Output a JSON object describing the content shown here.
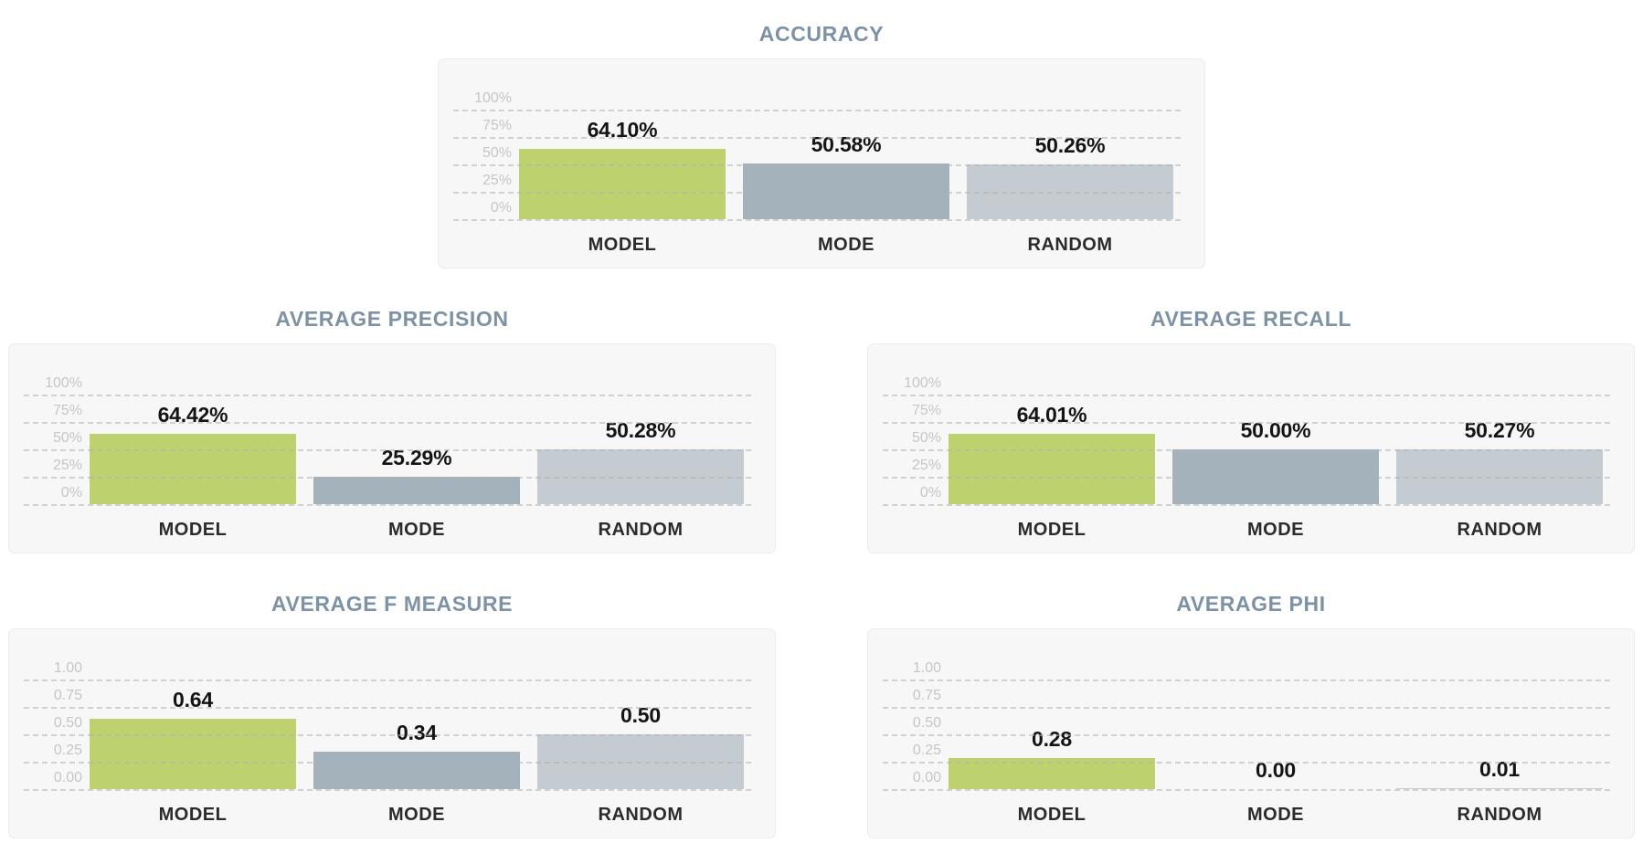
{
  "page": {
    "background": "#ffffff"
  },
  "palette": {
    "series_colors": {
      "MODEL": "#bdd16e",
      "MODE": "#a4b2bc",
      "RANDOM": "#c4ccd1"
    },
    "title_color": "#7d92a7",
    "y_tick_color": "#c6c6c6",
    "x_tick_color": "#2b2b2b",
    "value_label_color": "#141414",
    "card_background": "#f7f7f8",
    "card_border": "#ececec",
    "gridline_color": "#d9d9d9"
  },
  "chart_data": [
    {
      "type": "bar",
      "title": "ACCURACY",
      "categories": [
        "MODEL",
        "MODE",
        "RANDOM"
      ],
      "values": [
        64.1,
        50.58,
        50.26
      ],
      "value_labels": [
        "64.10%",
        "50.58%",
        "50.26%"
      ],
      "y_ticks": [
        "100%",
        "75%",
        "50%",
        "25%",
        "0%"
      ],
      "axis_max": 100,
      "ylim": [
        0,
        100
      ],
      "xlabel": "",
      "ylabel": "",
      "grid": "dashed-horizontal",
      "legend": "none"
    },
    {
      "type": "bar",
      "title": "AVERAGE PRECISION",
      "categories": [
        "MODEL",
        "MODE",
        "RANDOM"
      ],
      "values": [
        64.42,
        25.29,
        50.28
      ],
      "value_labels": [
        "64.42%",
        "25.29%",
        "50.28%"
      ],
      "y_ticks": [
        "100%",
        "75%",
        "50%",
        "25%",
        "0%"
      ],
      "axis_max": 100,
      "ylim": [
        0,
        100
      ],
      "xlabel": "",
      "ylabel": "",
      "grid": "dashed-horizontal",
      "legend": "none"
    },
    {
      "type": "bar",
      "title": "AVERAGE RECALL",
      "categories": [
        "MODEL",
        "MODE",
        "RANDOM"
      ],
      "values": [
        64.01,
        50.0,
        50.27
      ],
      "value_labels": [
        "64.01%",
        "50.00%",
        "50.27%"
      ],
      "y_ticks": [
        "100%",
        "75%",
        "50%",
        "25%",
        "0%"
      ],
      "axis_max": 100,
      "ylim": [
        0,
        100
      ],
      "xlabel": "",
      "ylabel": "",
      "grid": "dashed-horizontal",
      "legend": "none"
    },
    {
      "type": "bar",
      "title": "AVERAGE F MEASURE",
      "categories": [
        "MODEL",
        "MODE",
        "RANDOM"
      ],
      "values": [
        0.64,
        0.34,
        0.5
      ],
      "value_labels": [
        "0.64",
        "0.34",
        "0.50"
      ],
      "y_ticks": [
        "1.00",
        "0.75",
        "0.50",
        "0.25",
        "0.00"
      ],
      "axis_max": 1,
      "ylim": [
        0,
        1
      ],
      "xlabel": "",
      "ylabel": "",
      "grid": "dashed-horizontal",
      "legend": "none"
    },
    {
      "type": "bar",
      "title": "AVERAGE PHI",
      "categories": [
        "MODEL",
        "MODE",
        "RANDOM"
      ],
      "values": [
        0.28,
        0.0,
        0.01
      ],
      "value_labels": [
        "0.28",
        "0.00",
        "0.01"
      ],
      "y_ticks": [
        "1.00",
        "0.75",
        "0.50",
        "0.25",
        "0.00"
      ],
      "axis_max": 1,
      "ylim": [
        0,
        1
      ],
      "xlabel": "",
      "ylabel": "",
      "grid": "dashed-horizontal",
      "legend": "none"
    }
  ]
}
